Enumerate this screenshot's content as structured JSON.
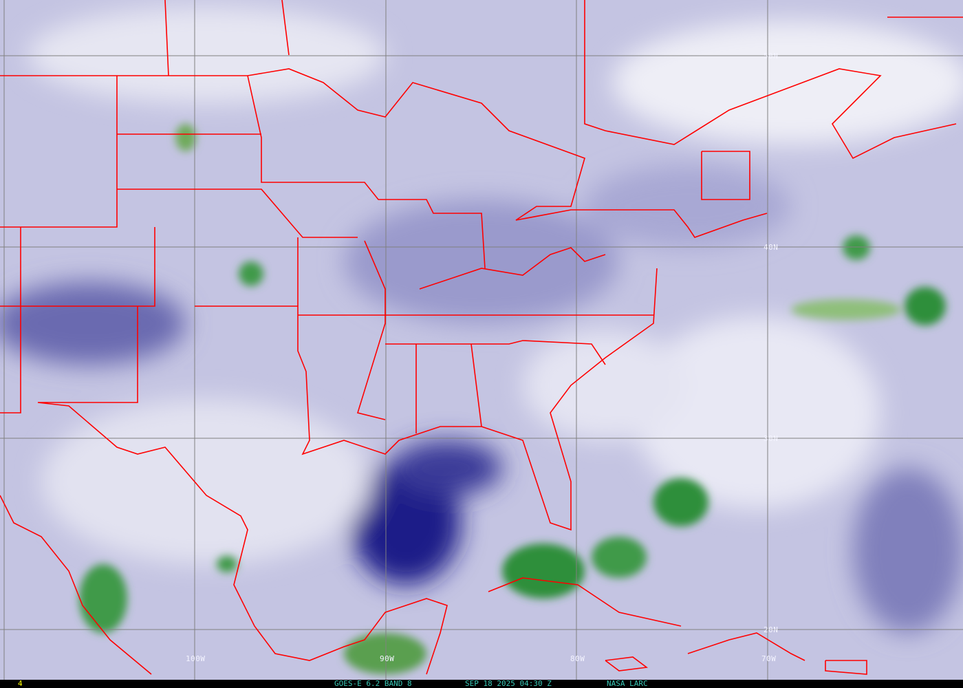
{
  "image": {
    "satellite": "GOES-E",
    "channel": "6.2",
    "band": "BAND 8",
    "date": "SEP 18 2025",
    "time": "04:30 Z",
    "credit": "NASA LARC",
    "frame_number": "4"
  },
  "status_text": {
    "product": "GOES-E 6.2 BAND 8",
    "datetime": "SEP 18 2025 04:30 Z",
    "credit": "NASA LARC",
    "frame": "4"
  },
  "latitude_labels": [
    "50N",
    "40N",
    "30N",
    "20N"
  ],
  "longitude_labels": [
    "100W",
    "90W",
    "80W",
    "70W"
  ],
  "colors": {
    "boundaries": "#ff0000",
    "grid": "#808080",
    "dry": "#1a1a80",
    "moist": "#f0f0f8",
    "cloud": "#2e8b3a",
    "status_text": "#39c7b5",
    "frame_text": "#ffff00"
  }
}
